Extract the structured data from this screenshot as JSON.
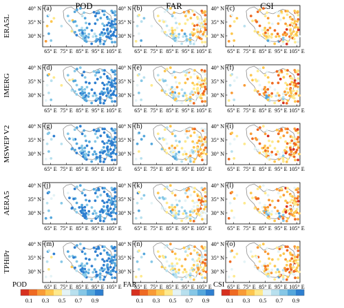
{
  "columns": [
    {
      "title": "POD",
      "metric": "POD",
      "colormap": "blue"
    },
    {
      "title": "FAR",
      "metric": "FAR",
      "colormap": "red"
    },
    {
      "title": "CSI",
      "metric": "CSI",
      "colormap": "red"
    }
  ],
  "rows": [
    "ERA5L",
    "IMERG",
    "MSWEP V2",
    "AERA5",
    "TPHiPr"
  ],
  "panel_labels": [
    "(a)",
    "(b)",
    "(c)",
    "(d)",
    "(e)",
    "(f)",
    "(g)",
    "(h)",
    "(i)",
    "(j)",
    "(k)",
    "(l)",
    "(m)",
    "(n)",
    "(o)"
  ],
  "lat_ticks": [
    "30° N",
    "35° N",
    "40° N"
  ],
  "lon_ticks": [
    "65° E",
    "75° E",
    "85° E",
    "95° E",
    "105° E"
  ],
  "lon_range": [
    60,
    107
  ],
  "lat_range": [
    26,
    41
  ],
  "colorbars": [
    {
      "name": "POD",
      "ticks": [
        "0.1",
        "0.3",
        "0.5",
        "0.7",
        "0.9"
      ]
    },
    {
      "name": "FAR",
      "ticks": [
        "0.1",
        "0.3",
        "0.5",
        "0.7",
        "0.9"
      ]
    },
    {
      "name": "CSI",
      "ticks": [
        "0.1",
        "0.3",
        "0.5",
        "0.7",
        "0.9"
      ]
    }
  ],
  "colors": {
    "scale": [
      "#d7301f",
      "#ef6a22",
      "#f99b36",
      "#fdc64e",
      "#fee98c",
      "#e4f3f6",
      "#b8e0ee",
      "#86c7e6",
      "#55a7dc",
      "#2e7fd0"
    ],
    "boundary": "#8c8c8c"
  }
}
